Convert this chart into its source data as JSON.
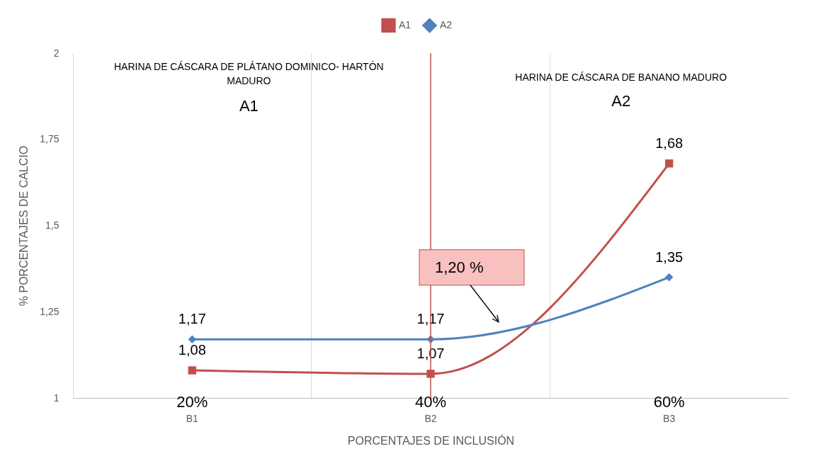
{
  "chart_data": {
    "type": "line",
    "categories": [
      "B1",
      "B2",
      "B3"
    ],
    "series": [
      {
        "name": "A1",
        "color": "#c0504d",
        "marker": "square",
        "values": [
          1.08,
          1.07,
          1.68
        ],
        "value_labels": [
          "1,08",
          "1,07",
          "1,68"
        ]
      },
      {
        "name": "A2",
        "color": "#4f81bd",
        "marker": "diamond",
        "values": [
          1.17,
          1.17,
          1.35
        ],
        "value_labels": [
          "1,17",
          "1,17",
          "1,35"
        ]
      }
    ],
    "xlabel": "PORCENTAJES DE INCLUSIÓN",
    "ylabel": "% PORCENTAJES DE CALCIO",
    "ylim": [
      1,
      2
    ],
    "yticks": [
      1,
      {
        "value": 1.25,
        "label": "1,25"
      },
      {
        "value": 1.5,
        "label": "1,5"
      },
      {
        "value": 1.75,
        "label": "1,75"
      },
      2
    ],
    "grid": "x",
    "legend": "top",
    "ref_lines": [
      {
        "axis": "x",
        "value": "B2",
        "color": "#c0504d"
      }
    ],
    "annotations": [
      "HARINA DE CÁSCARA DE PLÁTANO DOMINICO- HARTÓN MADURO",
      "A1",
      "HARINA DE CÁSCARA DE BANANO MADURO",
      "A2",
      "20%",
      "40%",
      "60%",
      "1,20 %"
    ]
  }
}
